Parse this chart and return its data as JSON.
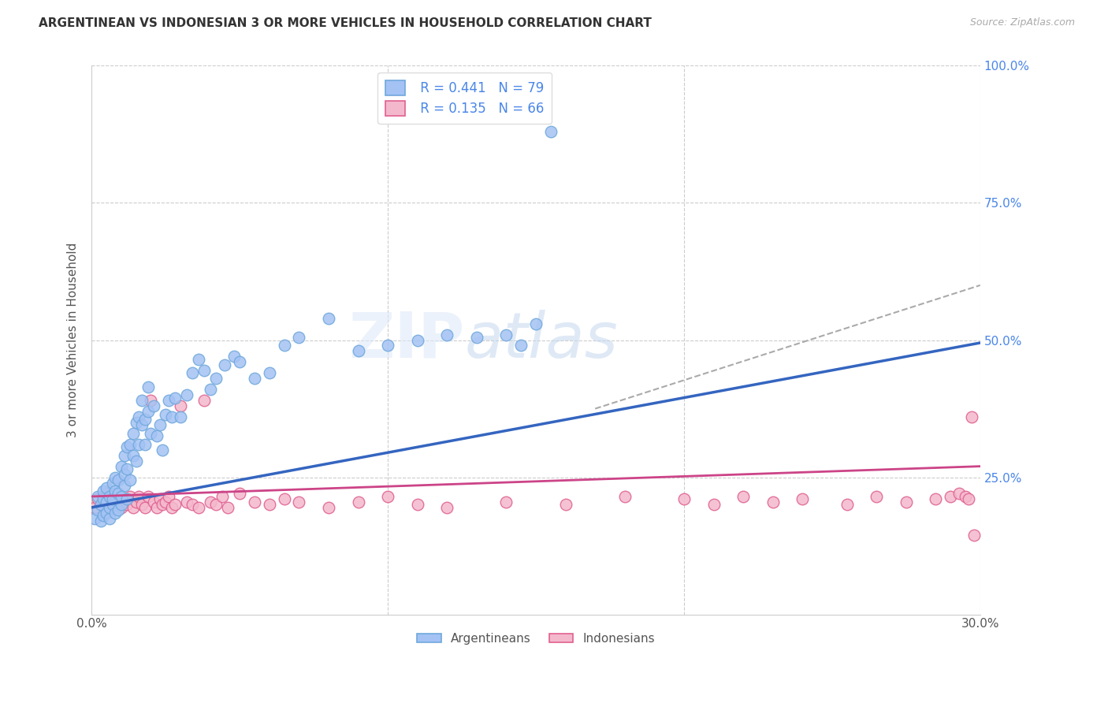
{
  "title": "ARGENTINEAN VS INDONESIAN 3 OR MORE VEHICLES IN HOUSEHOLD CORRELATION CHART",
  "source": "Source: ZipAtlas.com",
  "ylabel": "3 or more Vehicles in Household",
  "legend_R1": "R = 0.441",
  "legend_N1": "N = 79",
  "legend_R2": "R = 0.135",
  "legend_N2": "N = 66",
  "legend_label1": "Argentineans",
  "legend_label2": "Indonesians",
  "blue_edge_color": "#6fa8dc",
  "pink_edge_color": "#e06090",
  "blue_line_color": "#3465c0",
  "pink_line_color": "#cc4488",
  "blue_dot_fill": "#a4c2f4",
  "pink_dot_fill": "#f4b8cc",
  "gray_dash_color": "#aaaaaa",
  "xmin": 0.0,
  "xmax": 0.3,
  "ymin": 0.0,
  "ymax": 1.0,
  "arg_line_x0": 0.0,
  "arg_line_y0": 0.195,
  "arg_line_x1": 0.3,
  "arg_line_y1": 0.495,
  "ind_line_x0": 0.0,
  "ind_line_y0": 0.215,
  "ind_line_x1": 0.3,
  "ind_line_y1": 0.27,
  "dash_line_x0": 0.17,
  "dash_line_y0": 0.375,
  "dash_line_x1": 0.3,
  "dash_line_y1": 0.6,
  "argentinean_x": [
    0.001,
    0.002,
    0.002,
    0.003,
    0.003,
    0.004,
    0.004,
    0.004,
    0.005,
    0.005,
    0.005,
    0.006,
    0.006,
    0.006,
    0.007,
    0.007,
    0.007,
    0.008,
    0.008,
    0.008,
    0.009,
    0.009,
    0.009,
    0.01,
    0.01,
    0.01,
    0.011,
    0.011,
    0.011,
    0.012,
    0.012,
    0.012,
    0.013,
    0.013,
    0.014,
    0.014,
    0.015,
    0.015,
    0.016,
    0.016,
    0.017,
    0.017,
    0.018,
    0.018,
    0.019,
    0.019,
    0.02,
    0.021,
    0.022,
    0.023,
    0.024,
    0.025,
    0.026,
    0.027,
    0.028,
    0.03,
    0.032,
    0.034,
    0.036,
    0.038,
    0.04,
    0.042,
    0.045,
    0.048,
    0.05,
    0.055,
    0.06,
    0.065,
    0.07,
    0.08,
    0.09,
    0.1,
    0.11,
    0.12,
    0.13,
    0.14,
    0.145,
    0.15,
    0.155
  ],
  "argentinean_y": [
    0.175,
    0.19,
    0.215,
    0.17,
    0.2,
    0.18,
    0.21,
    0.225,
    0.185,
    0.205,
    0.23,
    0.175,
    0.215,
    0.195,
    0.2,
    0.24,
    0.21,
    0.185,
    0.225,
    0.25,
    0.19,
    0.22,
    0.245,
    0.2,
    0.27,
    0.215,
    0.235,
    0.29,
    0.255,
    0.21,
    0.305,
    0.265,
    0.31,
    0.245,
    0.29,
    0.33,
    0.28,
    0.35,
    0.31,
    0.36,
    0.345,
    0.39,
    0.31,
    0.355,
    0.37,
    0.415,
    0.33,
    0.38,
    0.325,
    0.345,
    0.3,
    0.365,
    0.39,
    0.36,
    0.395,
    0.36,
    0.4,
    0.44,
    0.465,
    0.445,
    0.41,
    0.43,
    0.455,
    0.47,
    0.46,
    0.43,
    0.44,
    0.49,
    0.505,
    0.54,
    0.48,
    0.49,
    0.5,
    0.51,
    0.505,
    0.51,
    0.49,
    0.53,
    0.88
  ],
  "indonesian_x": [
    0.001,
    0.002,
    0.003,
    0.004,
    0.005,
    0.005,
    0.006,
    0.007,
    0.008,
    0.009,
    0.01,
    0.011,
    0.012,
    0.013,
    0.014,
    0.015,
    0.016,
    0.017,
    0.018,
    0.019,
    0.02,
    0.021,
    0.022,
    0.023,
    0.024,
    0.025,
    0.026,
    0.027,
    0.028,
    0.03,
    0.032,
    0.034,
    0.036,
    0.038,
    0.04,
    0.042,
    0.044,
    0.046,
    0.05,
    0.055,
    0.06,
    0.065,
    0.07,
    0.08,
    0.09,
    0.1,
    0.11,
    0.12,
    0.14,
    0.16,
    0.18,
    0.2,
    0.21,
    0.22,
    0.23,
    0.24,
    0.255,
    0.265,
    0.275,
    0.285,
    0.29,
    0.293,
    0.295,
    0.296,
    0.297,
    0.298
  ],
  "indonesian_y": [
    0.195,
    0.21,
    0.2,
    0.215,
    0.205,
    0.22,
    0.195,
    0.21,
    0.2,
    0.205,
    0.195,
    0.21,
    0.2,
    0.215,
    0.195,
    0.205,
    0.215,
    0.2,
    0.195,
    0.215,
    0.39,
    0.205,
    0.195,
    0.21,
    0.2,
    0.205,
    0.215,
    0.195,
    0.2,
    0.38,
    0.205,
    0.2,
    0.195,
    0.39,
    0.205,
    0.2,
    0.215,
    0.195,
    0.22,
    0.205,
    0.2,
    0.21,
    0.205,
    0.195,
    0.205,
    0.215,
    0.2,
    0.195,
    0.205,
    0.2,
    0.215,
    0.21,
    0.2,
    0.215,
    0.205,
    0.21,
    0.2,
    0.215,
    0.205,
    0.21,
    0.215,
    0.22,
    0.215,
    0.21,
    0.36,
    0.145
  ]
}
